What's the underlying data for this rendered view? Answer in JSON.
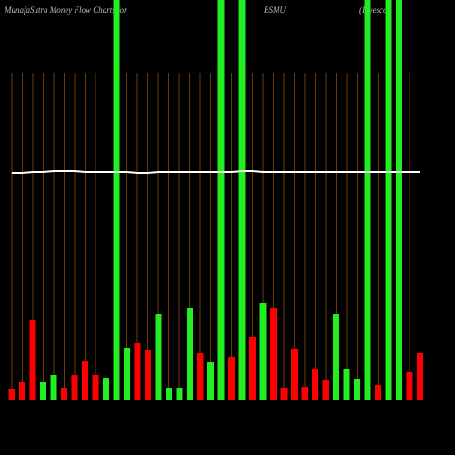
{
  "chart_data": {
    "type": "bar",
    "title": "MunafaSutra  Money Flow  Charts for",
    "symbol": "BSMU",
    "subtitle": "(Invesco",
    "ylim": [
      0,
      440
    ],
    "categories": [
      null,
      null,
      null,
      null,
      null,
      null,
      null,
      null,
      null,
      null,
      null,
      null,
      null,
      null,
      null,
      null,
      null,
      null,
      null,
      null,
      null,
      null,
      null,
      null,
      null,
      null,
      null,
      null,
      null,
      null,
      null,
      null,
      null,
      null,
      null,
      null,
      null,
      null,
      null,
      null
    ],
    "values": [
      12,
      20,
      88,
      20,
      28,
      14,
      28,
      43,
      28,
      25,
      440,
      58,
      63,
      55,
      95,
      14,
      14,
      101,
      52,
      42,
      440,
      48,
      440,
      70,
      107,
      102,
      14,
      57,
      15,
      35,
      22,
      95,
      35,
      24,
      440,
      17,
      440,
      440,
      31,
      52
    ],
    "colors": [
      "#ff0000",
      "#ff0000",
      "#ff0000",
      "#22ee22",
      "#22ee22",
      "#ff0000",
      "#ff0000",
      "#ff0000",
      "#ff0000",
      "#22ee22",
      "#22ee22",
      "#22ee22",
      "#ff0000",
      "#ff0000",
      "#22ee22",
      "#22ee22",
      "#22ee22",
      "#22ee22",
      "#ff0000",
      "#22ee22",
      "#22ee22",
      "#ff0000",
      "#22ee22",
      "#ff0000",
      "#22ee22",
      "#ff0000",
      "#ff0000",
      "#ff0000",
      "#ff0000",
      "#ff0000",
      "#ff0000",
      "#22ee22",
      "#22ee22",
      "#22ee22",
      "#22ee22",
      "#ff0000",
      "#22ee22",
      "#22ee22",
      "#ff0000",
      "#ff0000"
    ],
    "line": {
      "color": "#ffffff",
      "values": [
        250,
        250,
        251,
        251,
        252,
        252,
        252,
        251,
        251,
        251,
        251,
        251,
        250,
        250,
        251,
        251,
        251,
        251,
        251,
        251,
        251,
        251,
        252,
        252,
        251,
        251,
        251,
        251,
        251,
        251,
        251,
        251,
        251,
        251,
        251,
        251,
        251,
        251,
        251,
        251
      ]
    }
  }
}
